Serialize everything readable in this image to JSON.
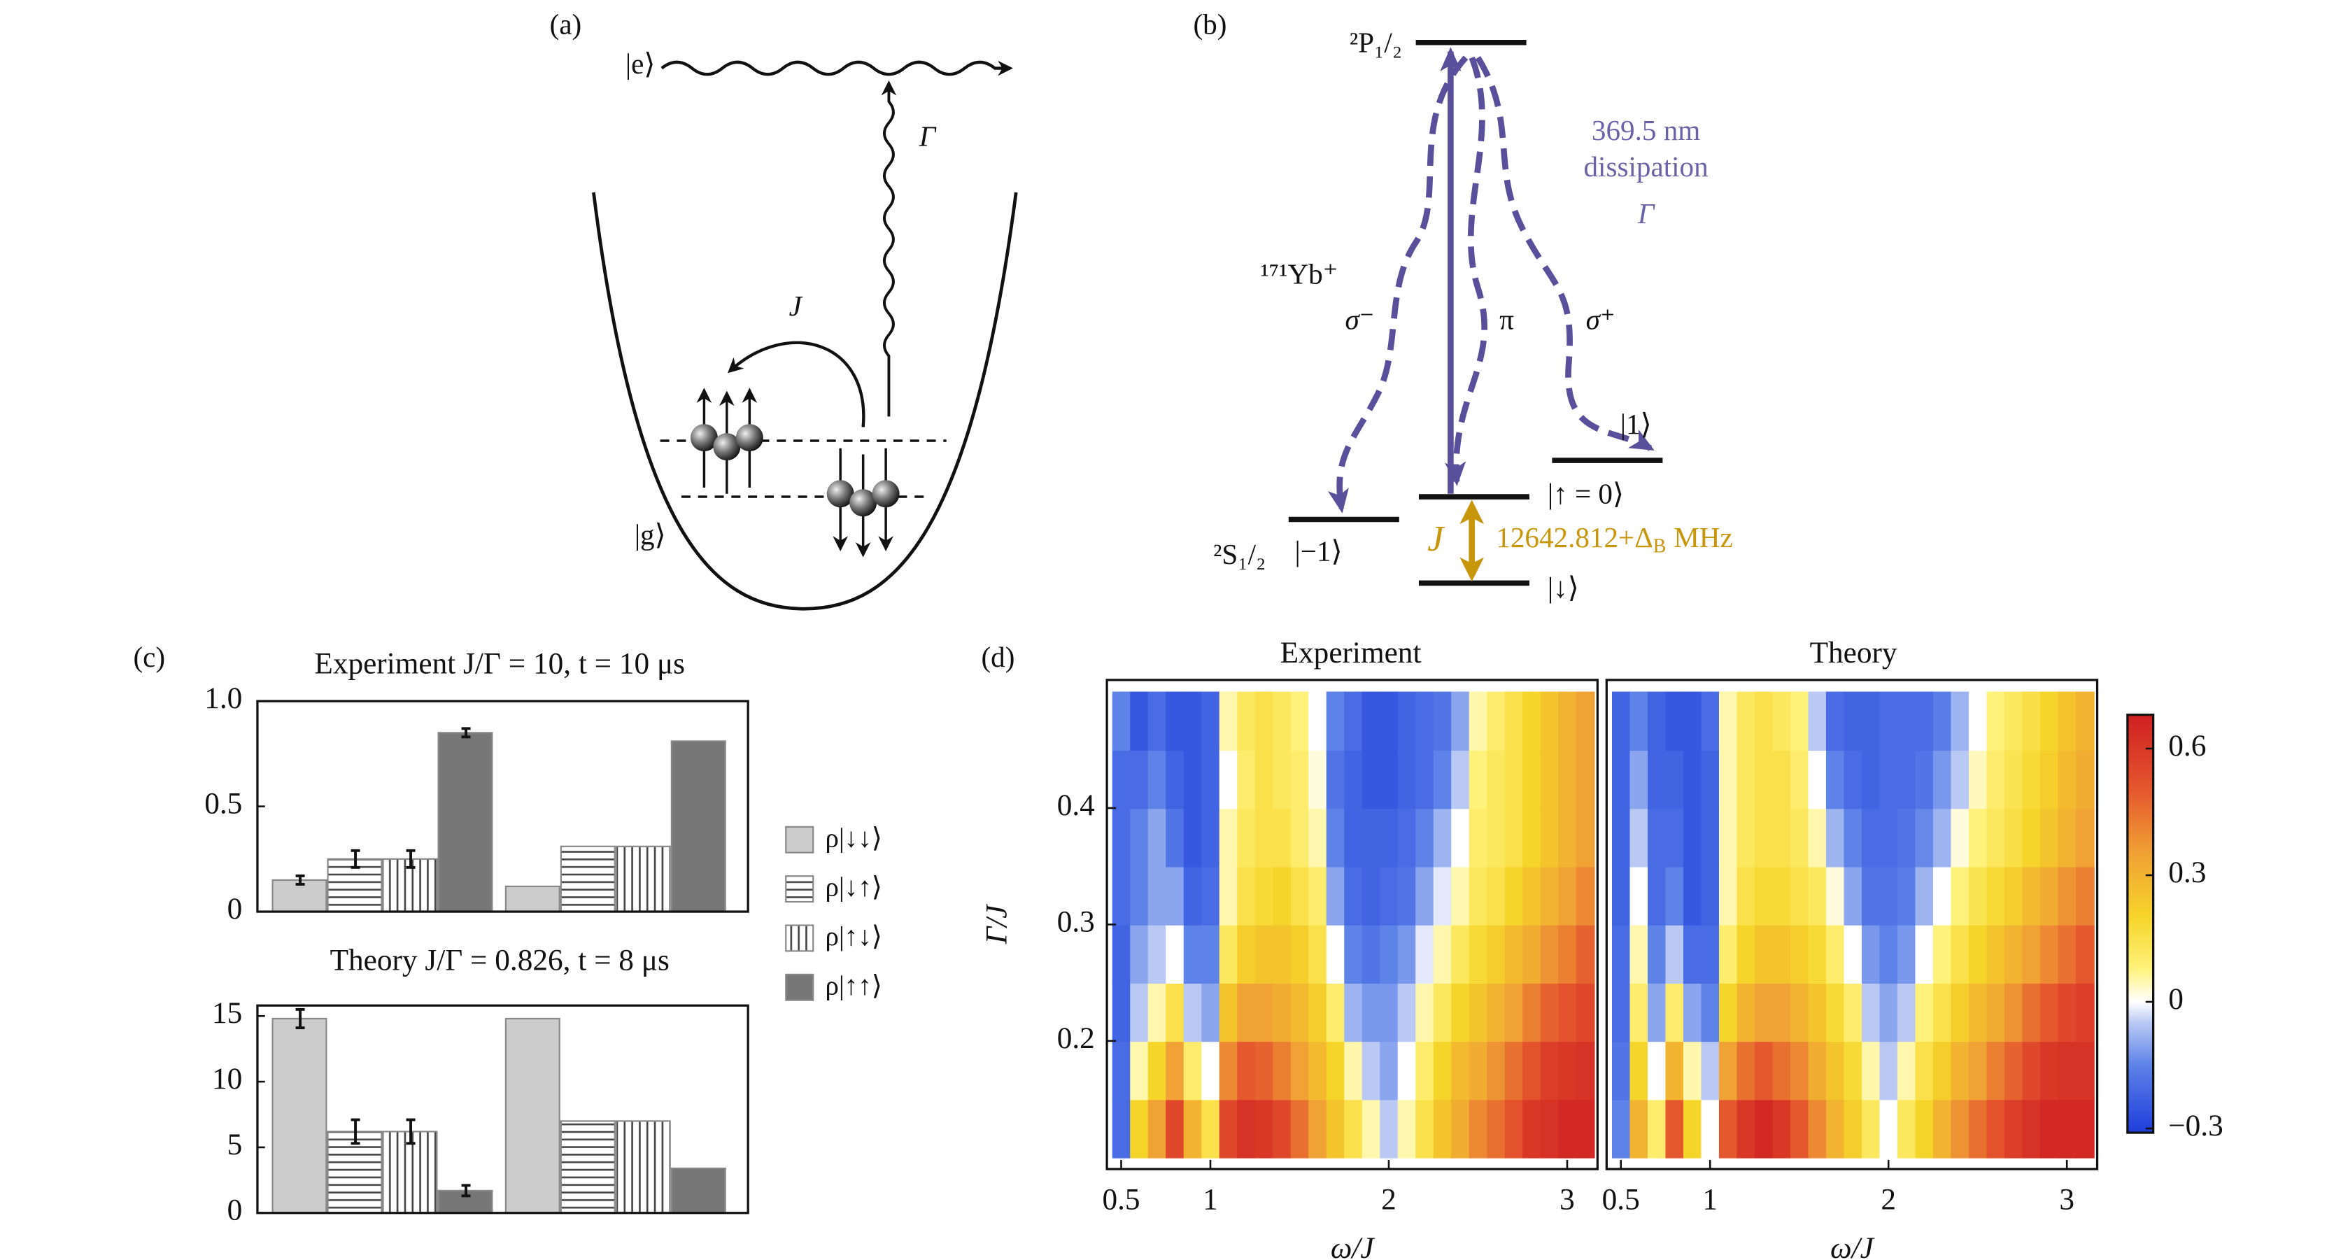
{
  "panels": {
    "c": "(c)",
    "d": "(d)"
  },
  "diagram_a": {
    "label": "(a)",
    "excited": "|e⟩",
    "ground": "|g⟩",
    "decay": "Γ",
    "hopping": "J"
  },
  "diagram_b": {
    "label": "(b)",
    "upper": "²P₁/₂",
    "lower": "²S₁/₂",
    "ion": "¹⁷¹Yb⁺",
    "laser": [
      "369.5 nm",
      "dissipation",
      "Γ"
    ],
    "sigma_minus": "σ⁻",
    "pi": "π",
    "sigma_plus": "σ⁺",
    "state_1": "|1⟩",
    "state_up": "|↑ = 0⟩",
    "state_m1": "|−1⟩",
    "state_down": "|↓⟩",
    "coupling": "J",
    "splitting": {
      "text": "12642.812+Δ",
      "sub": "B",
      "unit": "MHz"
    }
  },
  "chart_data": [
    {
      "type": "bar",
      "title": "Experiment J/Γ = 10, t = 10 μs",
      "categories": [
        null,
        null
      ],
      "ylim": [
        0,
        1
      ],
      "yticks": [
        0,
        0.5,
        {
          "value": 1,
          "label": "1.0"
        }
      ],
      "series": [
        {
          "name": "ρ|↓↓⟩",
          "color": "#cccccc",
          "pattern": "solid",
          "values": [
            0.15,
            0.12
          ],
          "errors": [
            0.02,
            null
          ]
        },
        {
          "name": "ρ|↓↑⟩",
          "color": "#ffffff",
          "pattern": "horizontal",
          "values": [
            0.25,
            0.31
          ],
          "errors": [
            0.04,
            null
          ]
        },
        {
          "name": "ρ|↑↓⟩",
          "color": "#ffffff",
          "pattern": "vertical",
          "values": [
            0.25,
            0.31
          ],
          "errors": [
            0.04,
            null
          ]
        },
        {
          "name": "ρ|↑↑⟩",
          "color": "#777777",
          "pattern": "solid",
          "values": [
            0.85,
            0.81
          ],
          "errors": [
            0.02,
            null
          ]
        }
      ]
    },
    {
      "type": "bar",
      "title": "Theory J/Γ = 0.826, t = 8 μs",
      "categories": [
        null,
        null
      ],
      "ylim": [
        0,
        15.8
      ],
      "yticks": [
        0,
        5,
        10,
        15
      ],
      "series": [
        {
          "color": "#cccccc",
          "pattern": "solid",
          "values": [
            14.8,
            14.8
          ],
          "errors": [
            0.7,
            null
          ]
        },
        {
          "color": "#ffffff",
          "pattern": "horizontal",
          "values": [
            6.2,
            7.0
          ],
          "errors": [
            0.9,
            null
          ]
        },
        {
          "color": "#ffffff",
          "pattern": "vertical",
          "values": [
            6.2,
            7.0
          ],
          "errors": [
            0.9,
            null
          ]
        },
        {
          "color": "#777777",
          "pattern": "solid",
          "values": [
            1.7,
            3.4
          ],
          "errors": [
            0.4,
            null
          ]
        }
      ]
    },
    {
      "type": "heatmap",
      "title": "Experiment",
      "xlabel": "ω/J",
      "ylabel": "Γ/J",
      "xlim": [
        0.42,
        3.17
      ],
      "ylim": [
        0.09,
        0.51
      ],
      "xticks": [
        0.5,
        1,
        2,
        3
      ],
      "yticks": [
        0.2,
        0.3,
        0.4
      ],
      "x": [
        0.5,
        0.6,
        0.7,
        0.8,
        0.9,
        1.0,
        1.1,
        1.2,
        1.3,
        1.4,
        1.5,
        1.6,
        1.7,
        1.8,
        1.9,
        2.0,
        2.1,
        2.2,
        2.3,
        2.4,
        2.5,
        2.6,
        2.7,
        2.8,
        2.9,
        3.0,
        3.1
      ],
      "y": [
        0.125,
        0.175,
        0.225,
        0.275,
        0.325,
        0.375,
        0.425,
        0.475
      ],
      "values": [
        [
          -0.2,
          -0.2,
          -0.22,
          -0.22,
          -0.2,
          -0.2,
          -0.2,
          -0.15
        ],
        [
          0.2,
          0.05,
          -0.05,
          -0.1,
          -0.15,
          -0.15,
          -0.2,
          -0.25
        ],
        [
          0.35,
          0.2,
          0.05,
          -0.05,
          -0.1,
          -0.1,
          -0.15,
          -0.2
        ],
        [
          0.55,
          0.35,
          0.15,
          0,
          -0.1,
          -0.18,
          -0.22,
          -0.25
        ],
        [
          0.3,
          0.1,
          -0.05,
          -0.15,
          -0.22,
          -0.25,
          -0.25,
          -0.25
        ],
        [
          0.15,
          0,
          -0.1,
          -0.15,
          -0.2,
          -0.22,
          -0.22,
          -0.22
        ],
        [
          0.55,
          0.4,
          0.25,
          0.12,
          0.05,
          0.05,
          0,
          0.05
        ],
        [
          0.62,
          0.5,
          0.35,
          0.22,
          0.15,
          0.12,
          0.1,
          0.12
        ],
        [
          0.6,
          0.48,
          0.35,
          0.25,
          0.18,
          0.15,
          0.15,
          0.15
        ],
        [
          0.55,
          0.42,
          0.32,
          0.25,
          0.2,
          0.15,
          0.12,
          0.12
        ],
        [
          0.45,
          0.35,
          0.28,
          0.22,
          0.15,
          0.1,
          0.1,
          0.08
        ],
        [
          0.35,
          0.28,
          0.22,
          0.15,
          0.1,
          0.05,
          0.02,
          0
        ],
        [
          0.25,
          0.2,
          0.1,
          0,
          -0.1,
          -0.15,
          -0.18,
          -0.15
        ],
        [
          0.15,
          0.05,
          -0.08,
          -0.15,
          -0.2,
          -0.22,
          -0.22,
          -0.2
        ],
        [
          0.05,
          -0.05,
          -0.12,
          -0.18,
          -0.22,
          -0.22,
          -0.25,
          -0.25
        ],
        [
          -0.05,
          -0.1,
          -0.12,
          -0.15,
          -0.2,
          -0.22,
          -0.25,
          -0.25
        ],
        [
          0.05,
          0,
          -0.05,
          -0.12,
          -0.18,
          -0.2,
          -0.22,
          -0.22
        ],
        [
          0.15,
          0.1,
          0.05,
          -0.02,
          -0.1,
          -0.15,
          -0.2,
          -0.2
        ],
        [
          0.25,
          0.2,
          0.12,
          0.05,
          -0.02,
          -0.08,
          -0.15,
          -0.18
        ],
        [
          0.32,
          0.28,
          0.2,
          0.12,
          0.05,
          0,
          -0.05,
          -0.1
        ],
        [
          0.4,
          0.32,
          0.25,
          0.18,
          0.12,
          0.1,
          0.08,
          0.05
        ],
        [
          0.45,
          0.38,
          0.3,
          0.22,
          0.15,
          0.12,
          0.12,
          0.1
        ],
        [
          0.52,
          0.45,
          0.35,
          0.28,
          0.2,
          0.15,
          0.15,
          0.15
        ],
        [
          0.6,
          0.52,
          0.42,
          0.32,
          0.25,
          0.2,
          0.2,
          0.2
        ],
        [
          0.62,
          0.58,
          0.48,
          0.38,
          0.3,
          0.25,
          0.25,
          0.25
        ],
        [
          0.65,
          0.6,
          0.52,
          0.42,
          0.35,
          0.3,
          0.3,
          0.3
        ],
        [
          0.65,
          0.62,
          0.55,
          0.48,
          0.4,
          0.35,
          0.35,
          0.35
        ]
      ]
    },
    {
      "type": "heatmap",
      "title": "Theory",
      "xlabel": "ω/J",
      "xlim": [
        0.42,
        3.17
      ],
      "ylim": [
        0.09,
        0.51
      ],
      "xticks": [
        0.5,
        1,
        2,
        3
      ],
      "x": [
        0.5,
        0.6,
        0.7,
        0.8,
        0.9,
        1.0,
        1.1,
        1.2,
        1.3,
        1.4,
        1.5,
        1.6,
        1.7,
        1.8,
        1.9,
        2.0,
        2.1,
        2.2,
        2.3,
        2.4,
        2.5,
        2.6,
        2.7,
        2.8,
        2.9,
        3.0,
        3.1
      ],
      "y": [
        0.125,
        0.175,
        0.225,
        0.275,
        0.325,
        0.375,
        0.425,
        0.475
      ],
      "values": [
        [
          -0.15,
          -0.18,
          -0.2,
          -0.2,
          -0.22,
          -0.22,
          -0.22,
          -0.22
        ],
        [
          0.3,
          0.2,
          0.1,
          0.05,
          0,
          -0.05,
          -0.1,
          -0.15
        ],
        [
          0.1,
          0,
          -0.1,
          -0.15,
          -0.2,
          -0.2,
          -0.22,
          -0.22
        ],
        [
          0.5,
          0.3,
          0.1,
          -0.05,
          -0.15,
          -0.2,
          -0.22,
          -0.25
        ],
        [
          0.2,
          0.05,
          -0.1,
          -0.2,
          -0.25,
          -0.25,
          -0.25,
          -0.25
        ],
        [
          0,
          -0.05,
          -0.15,
          -0.2,
          -0.22,
          -0.22,
          -0.22,
          -0.2
        ],
        [
          0.5,
          0.35,
          0.2,
          0.1,
          0.05,
          0.05,
          0.05,
          0.05
        ],
        [
          0.6,
          0.45,
          0.3,
          0.2,
          0.15,
          0.12,
          0.12,
          0.12
        ],
        [
          0.65,
          0.5,
          0.35,
          0.25,
          0.18,
          0.15,
          0.15,
          0.15
        ],
        [
          0.6,
          0.45,
          0.35,
          0.25,
          0.18,
          0.15,
          0.15,
          0.12
        ],
        [
          0.5,
          0.4,
          0.3,
          0.22,
          0.15,
          0.12,
          0.1,
          0.08
        ],
        [
          0.4,
          0.32,
          0.25,
          0.18,
          0.12,
          0.05,
          0,
          -0.05
        ],
        [
          0.3,
          0.25,
          0.18,
          0.1,
          0.02,
          -0.08,
          -0.15,
          -0.2
        ],
        [
          0.22,
          0.18,
          0.1,
          0,
          -0.1,
          -0.15,
          -0.2,
          -0.22
        ],
        [
          0.12,
          0.05,
          -0.05,
          -0.12,
          -0.18,
          -0.2,
          -0.22,
          -0.22
        ],
        [
          0,
          -0.05,
          -0.1,
          -0.15,
          -0.18,
          -0.2,
          -0.2,
          -0.2
        ],
        [
          0.12,
          0.05,
          -0.05,
          -0.12,
          -0.16,
          -0.18,
          -0.2,
          -0.2
        ],
        [
          0.2,
          0.15,
          0.08,
          0,
          -0.08,
          -0.14,
          -0.18,
          -0.2
        ],
        [
          0.3,
          0.22,
          0.15,
          0.08,
          0,
          -0.08,
          -0.12,
          -0.16
        ],
        [
          0.38,
          0.3,
          0.22,
          0.15,
          0.08,
          0.02,
          -0.05,
          -0.08
        ],
        [
          0.45,
          0.35,
          0.28,
          0.2,
          0.14,
          0.08,
          0.04,
          0
        ],
        [
          0.52,
          0.42,
          0.32,
          0.25,
          0.18,
          0.12,
          0.1,
          0.08
        ],
        [
          0.58,
          0.48,
          0.38,
          0.3,
          0.22,
          0.16,
          0.14,
          0.12
        ],
        [
          0.62,
          0.55,
          0.45,
          0.35,
          0.28,
          0.2,
          0.18,
          0.16
        ],
        [
          0.65,
          0.6,
          0.5,
          0.4,
          0.32,
          0.25,
          0.22,
          0.2
        ],
        [
          0.65,
          0.62,
          0.55,
          0.45,
          0.38,
          0.3,
          0.28,
          0.25
        ],
        [
          0.65,
          0.62,
          0.58,
          0.5,
          0.42,
          0.35,
          0.32,
          0.3
        ]
      ]
    }
  ],
  "colorbar": {
    "lim": [
      -0.31,
      0.68
    ],
    "ticks": [
      {
        "value": -0.3,
        "label": "−0.3"
      },
      0,
      0.3,
      0.6
    ],
    "colormap": [
      [
        -0.31,
        "#1e3ddb"
      ],
      [
        -0.15,
        "#5d82e8"
      ],
      [
        -0.05,
        "#b9c9f4"
      ],
      [
        0,
        "#ffffff"
      ],
      [
        0.08,
        "#fff27a"
      ],
      [
        0.2,
        "#f6d52a"
      ],
      [
        0.35,
        "#f0a234"
      ],
      [
        0.5,
        "#e5582e"
      ],
      [
        0.68,
        "#cf1f22"
      ]
    ]
  }
}
